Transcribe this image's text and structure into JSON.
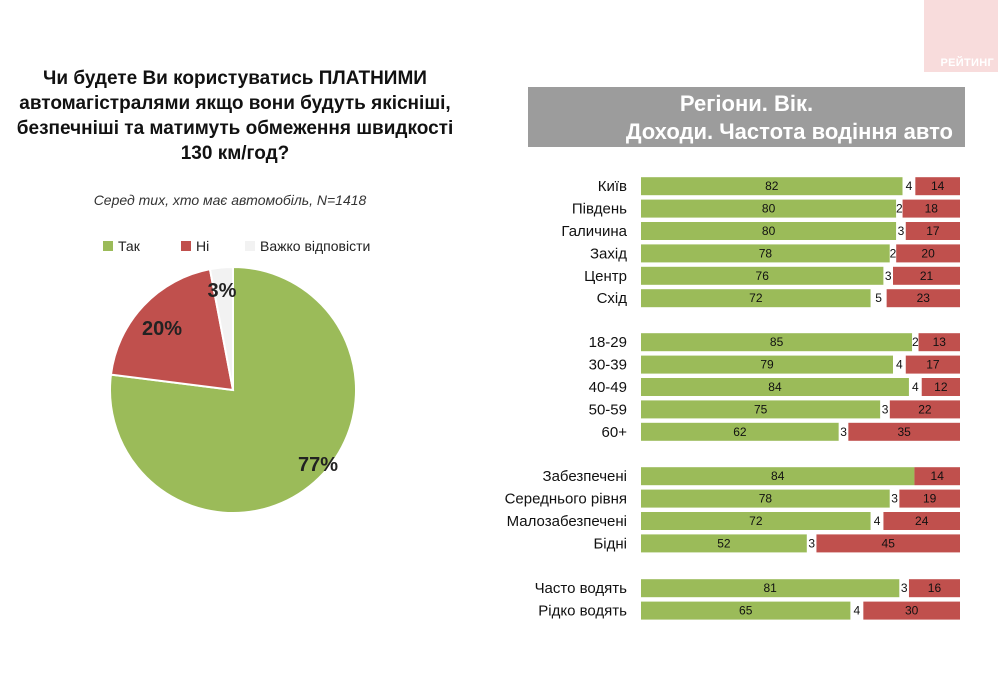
{
  "question": {
    "lines": [
      "Чи будете Ви користуватись ПЛАТНИМИ",
      "автомагістралями якщо вони будуть якісніші,",
      "безпечніші та матимуть обмеження швидкості",
      "130 км/год?"
    ]
  },
  "subtitle": "Серед тих, хто має автомобіль, N=1418",
  "logo_text": "РЕЙТИНГ",
  "banner": {
    "line1": "Регіони. Вік.",
    "line2": "Доходи. Частота водіння авто"
  },
  "legend": [
    {
      "label": "Так",
      "color": "#9bbb59"
    },
    {
      "label": "Ні",
      "color": "#c0504d"
    },
    {
      "label": "Важко відповісти",
      "color": "#f2f2f2"
    }
  ],
  "chart_data": [
    {
      "type": "pie",
      "slices": [
        {
          "name": "Так",
          "value": 77,
          "label": "77%",
          "color": "#9bbb59"
        },
        {
          "name": "Ні",
          "value": 20,
          "label": "20%",
          "color": "#c0504d"
        },
        {
          "name": "Важко відповісти",
          "value": 3,
          "label": "3%",
          "color": "#f2f2f2"
        }
      ]
    },
    {
      "type": "bar",
      "orientation": "horizontal",
      "stacked": true,
      "groups": [
        [
          "Київ",
          "Південь",
          "Галичина",
          "Захід",
          "Центр",
          "Схід"
        ],
        [
          "18-29",
          "30-39",
          "40-49",
          "50-59",
          "60+"
        ],
        [
          "Забезпечені",
          "Середнього рівня",
          "Малозабезпечені",
          "Бідні"
        ],
        [
          "Часто водять",
          "Рідко водять"
        ]
      ],
      "categories": [
        "Київ",
        "Південь",
        "Галичина",
        "Захід",
        "Центр",
        "Схід",
        "18-29",
        "30-39",
        "40-49",
        "50-59",
        "60+",
        "Забезпечені",
        "Середнього рівня",
        "Малозабезпечені",
        "Бідні",
        "Часто водять",
        "Рідко водять"
      ],
      "series": [
        {
          "name": "Так",
          "color": "#9bbb59",
          "values": [
            82,
            80,
            80,
            78,
            76,
            72,
            85,
            79,
            84,
            75,
            62,
            84,
            78,
            72,
            52,
            81,
            65
          ]
        },
        {
          "name": "Важко відповісти",
          "color": "#f2f2f2",
          "values": [
            4,
            2,
            3,
            2,
            3,
            5,
            2,
            4,
            4,
            3,
            3,
            null,
            3,
            4,
            3,
            3,
            4
          ]
        },
        {
          "name": "Ні",
          "color": "#c0504d",
          "values": [
            14,
            18,
            17,
            20,
            21,
            23,
            13,
            17,
            12,
            22,
            35,
            14,
            19,
            24,
            45,
            16,
            30
          ]
        }
      ],
      "xlim": [
        0,
        100
      ]
    }
  ]
}
